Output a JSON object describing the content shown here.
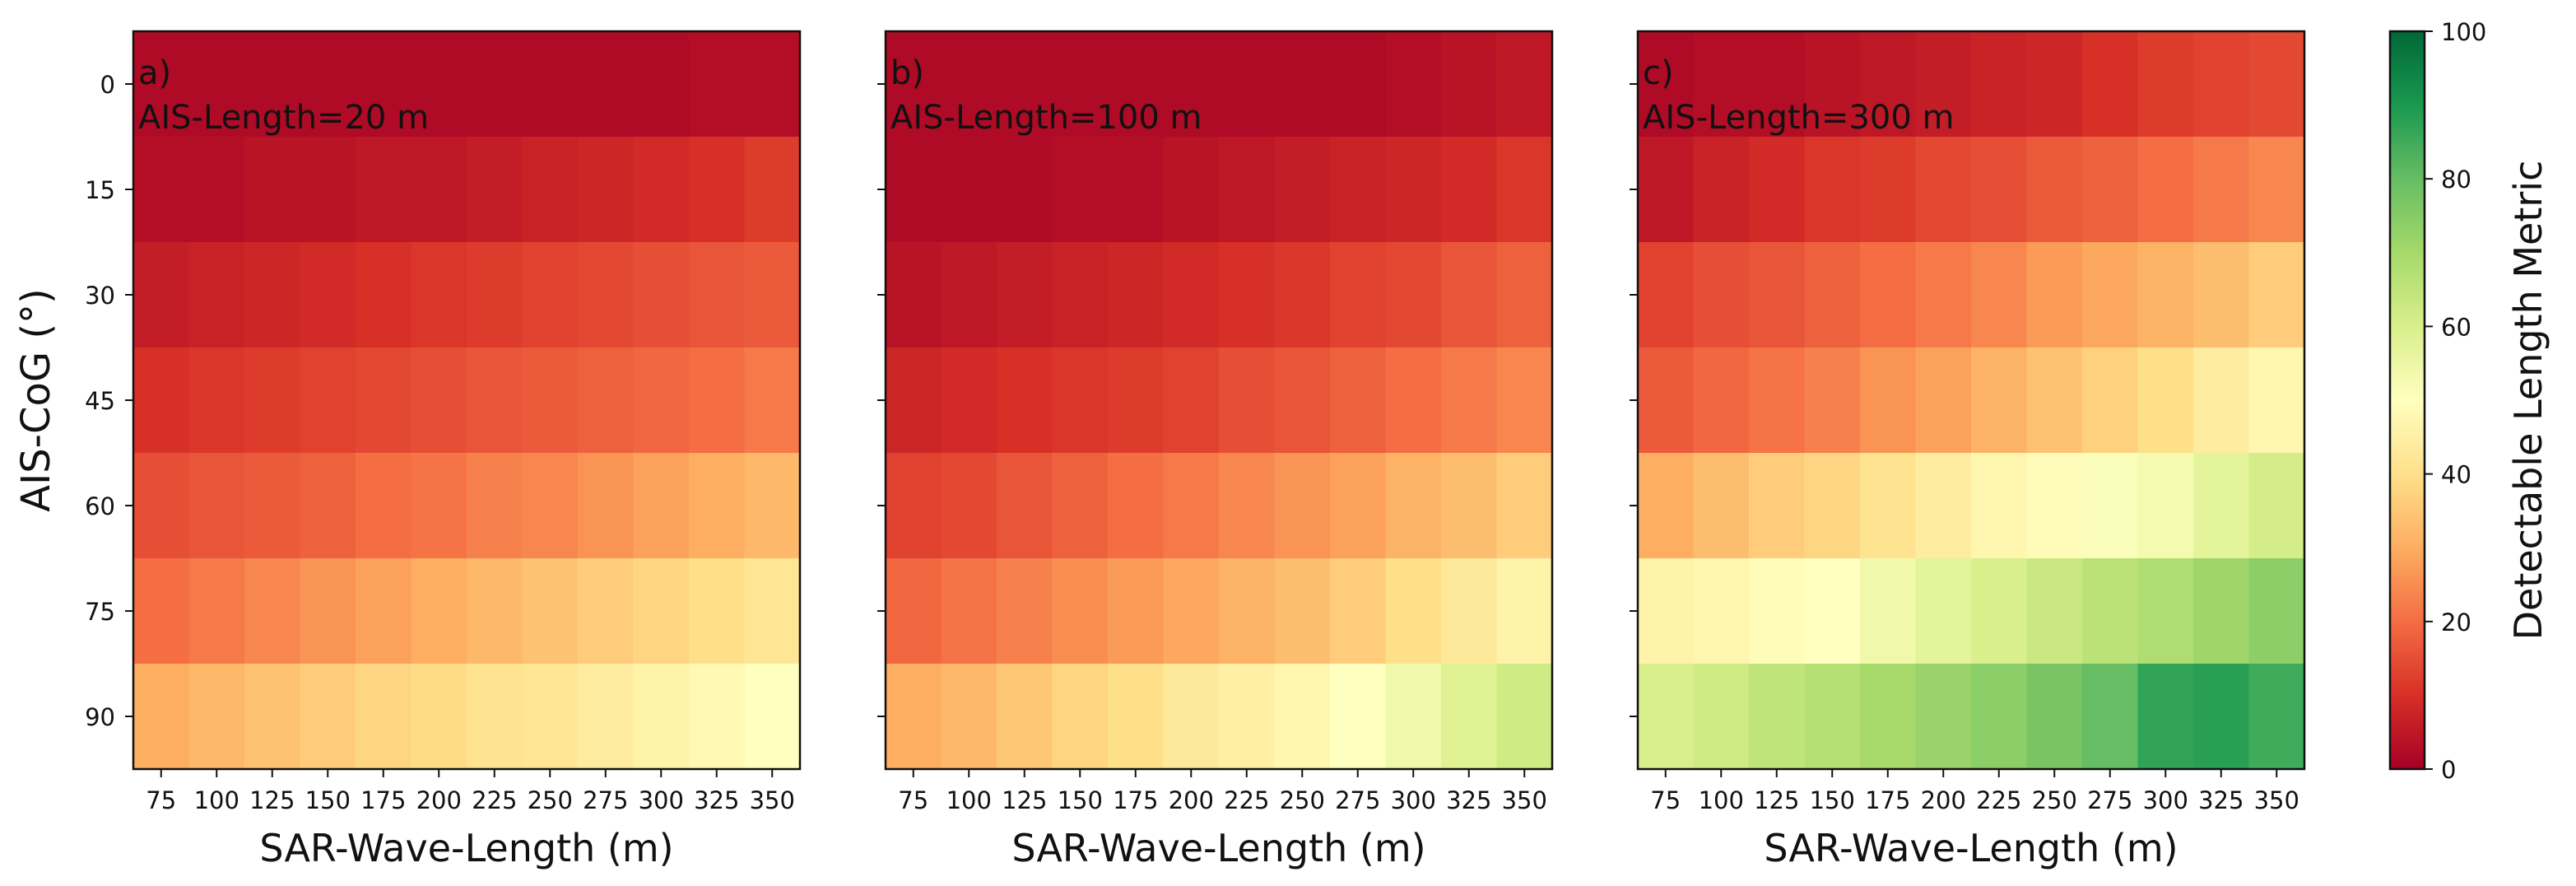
{
  "figure": {
    "ylabel": "AIS-CoG (°)",
    "colorbar": {
      "label": "Detectable Length Metric",
      "range": [
        0,
        100
      ],
      "ticks": [
        "0",
        "20",
        "40",
        "60",
        "80",
        "100"
      ],
      "colormap": "RdYlGn"
    }
  },
  "chart_data": [
    {
      "type": "heatmap",
      "panel_label": "a)",
      "title": "AIS-Length=20 m",
      "xlabel": "SAR-Wave-Length (m)",
      "ylabel": "AIS-CoG (°)",
      "x": [
        "75",
        "100",
        "125",
        "150",
        "175",
        "200",
        "225",
        "250",
        "275",
        "300",
        "325",
        "350"
      ],
      "y": [
        "0",
        "15",
        "30",
        "45",
        "60",
        "75",
        "90"
      ],
      "values": [
        [
          2,
          2,
          2,
          2,
          2,
          2,
          2,
          2,
          2,
          2,
          3,
          3
        ],
        [
          3,
          3,
          4,
          4,
          5,
          5,
          6,
          7,
          8,
          9,
          10,
          12
        ],
        [
          6,
          7,
          8,
          9,
          10,
          11,
          12,
          13,
          14,
          15,
          16,
          17
        ],
        [
          10,
          11,
          12,
          13,
          14,
          15,
          16,
          17,
          18,
          19,
          20,
          22
        ],
        [
          15,
          16,
          17,
          18,
          20,
          21,
          23,
          24,
          26,
          28,
          30,
          32
        ],
        [
          20,
          22,
          24,
          26,
          28,
          30,
          32,
          34,
          36,
          38,
          40,
          42
        ],
        [
          30,
          32,
          34,
          36,
          38,
          39,
          41,
          42,
          44,
          46,
          48,
          50
        ]
      ]
    },
    {
      "type": "heatmap",
      "panel_label": "b)",
      "title": "AIS-Length=100 m",
      "xlabel": "SAR-Wave-Length (m)",
      "ylabel": "",
      "x": [
        "75",
        "100",
        "125",
        "150",
        "175",
        "200",
        "225",
        "250",
        "275",
        "300",
        "325",
        "350"
      ],
      "y": [
        "0",
        "15",
        "30",
        "45",
        "60",
        "75",
        "90"
      ],
      "values": [
        [
          2,
          2,
          2,
          2,
          2,
          2,
          2,
          2,
          2,
          3,
          4,
          5
        ],
        [
          2,
          2,
          2,
          3,
          3,
          4,
          5,
          6,
          7,
          8,
          9,
          11
        ],
        [
          4,
          5,
          6,
          7,
          8,
          9,
          10,
          11,
          13,
          14,
          16,
          18
        ],
        [
          8,
          9,
          10,
          11,
          12,
          13,
          15,
          16,
          18,
          20,
          22,
          24
        ],
        [
          13,
          14,
          16,
          18,
          20,
          22,
          24,
          26,
          28,
          31,
          33,
          36
        ],
        [
          19,
          21,
          23,
          25,
          27,
          29,
          31,
          33,
          36,
          40,
          43,
          46
        ],
        [
          30,
          32,
          35,
          38,
          40,
          43,
          45,
          47,
          50,
          54,
          58,
          62
        ]
      ]
    },
    {
      "type": "heatmap",
      "panel_label": "c)",
      "title": "AIS-Length=300 m",
      "xlabel": "SAR-Wave-Length (m)",
      "ylabel": "",
      "x": [
        "75",
        "100",
        "125",
        "150",
        "175",
        "200",
        "225",
        "250",
        "275",
        "300",
        "325",
        "350"
      ],
      "y": [
        "0",
        "15",
        "30",
        "45",
        "60",
        "75",
        "90"
      ],
      "values": [
        [
          2,
          3,
          3,
          4,
          5,
          6,
          7,
          8,
          10,
          12,
          13,
          14
        ],
        [
          5,
          7,
          9,
          11,
          12,
          14,
          15,
          17,
          18,
          20,
          22,
          24
        ],
        [
          13,
          15,
          16,
          18,
          20,
          22,
          24,
          27,
          29,
          31,
          33,
          36
        ],
        [
          17,
          19,
          21,
          23,
          26,
          28,
          31,
          34,
          37,
          40,
          44,
          47
        ],
        [
          30,
          33,
          36,
          38,
          41,
          44,
          47,
          49,
          51,
          53,
          57,
          61
        ],
        [
          46,
          47,
          49,
          50,
          54,
          57,
          60,
          63,
          66,
          68,
          71,
          74
        ],
        [
          60,
          62,
          65,
          67,
          70,
          72,
          74,
          77,
          80,
          87,
          88,
          85
        ]
      ]
    }
  ]
}
